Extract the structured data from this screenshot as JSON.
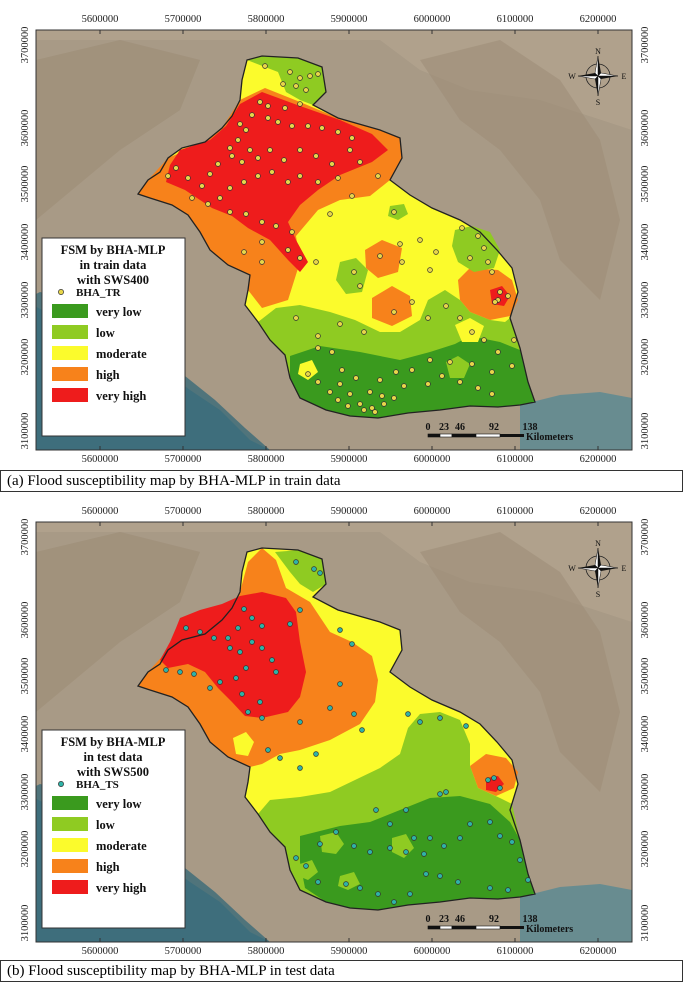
{
  "x_ticks": [
    "5600000",
    "5700000",
    "5800000",
    "5900000",
    "6000000",
    "6100000",
    "6200000"
  ],
  "y_ticks": [
    "3700000",
    "3600000",
    "3500000",
    "3400000",
    "3300000",
    "3200000",
    "3100000"
  ],
  "compass": {
    "n": "N",
    "s": "S",
    "e": "E",
    "w": "W"
  },
  "scalebar": {
    "labels": [
      "0",
      "23",
      "46",
      "92",
      "138"
    ],
    "unit": "Kilometers"
  },
  "watermark": "",
  "classes": [
    {
      "label": "very low",
      "color": "#3a9a1e"
    },
    {
      "label": "low",
      "color": "#8fcb22"
    },
    {
      "label": "moderate",
      "color": "#fbfb2c"
    },
    {
      "label": "high",
      "color": "#f7821b"
    },
    {
      "label": "very high",
      "color": "#ee1c1c"
    }
  ],
  "panels": [
    {
      "legend_title": [
        "FSM by BHA-MLP",
        "in train data",
        "with SWS400"
      ],
      "points_label": "BHA_TR",
      "point_color": "#e8d64a",
      "caption": "(a) Flood susceptibility map by BHA-MLP in train data"
    },
    {
      "legend_title": [
        "FSM by BHA-MLP",
        "in test data",
        "with SWS500"
      ],
      "points_label": "BHA_TS",
      "point_color": "#2fb3a7",
      "caption": "(b) Flood susceptibility map by BHA-MLP in test data"
    }
  ]
}
